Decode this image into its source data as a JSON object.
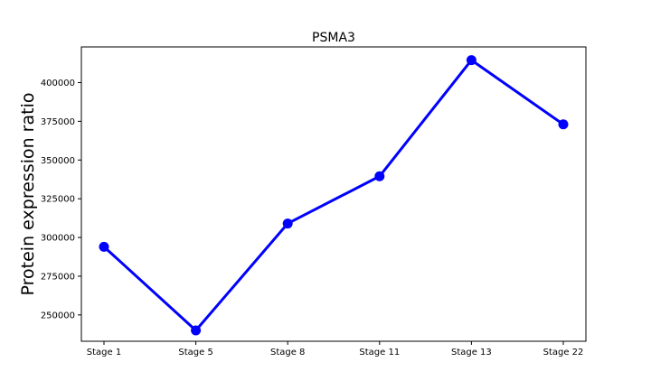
{
  "chart_data": {
    "type": "line",
    "title": "PSMA3",
    "xlabel": "",
    "ylabel": "Protein expression ratio",
    "categories": [
      "Stage 1",
      "Stage 5",
      "Stage 8",
      "Stage 11",
      "Stage 13",
      "Stage 22"
    ],
    "series": [
      {
        "values": [
          294000,
          240000,
          309000,
          339500,
          414500,
          373000
        ]
      }
    ],
    "yticks": [
      250000,
      275000,
      300000,
      325000,
      350000,
      375000,
      400000
    ],
    "ytick_labels": [
      "250000",
      "275000",
      "300000",
      "325000",
      "350000",
      "375000",
      "400000"
    ],
    "ylim": [
      233000,
      423000
    ],
    "grid": false,
    "legend": "none",
    "colors": {
      "line": "#0000ff",
      "marker": "#0000ff",
      "axes": "#000000",
      "background": "#ffffff"
    }
  }
}
